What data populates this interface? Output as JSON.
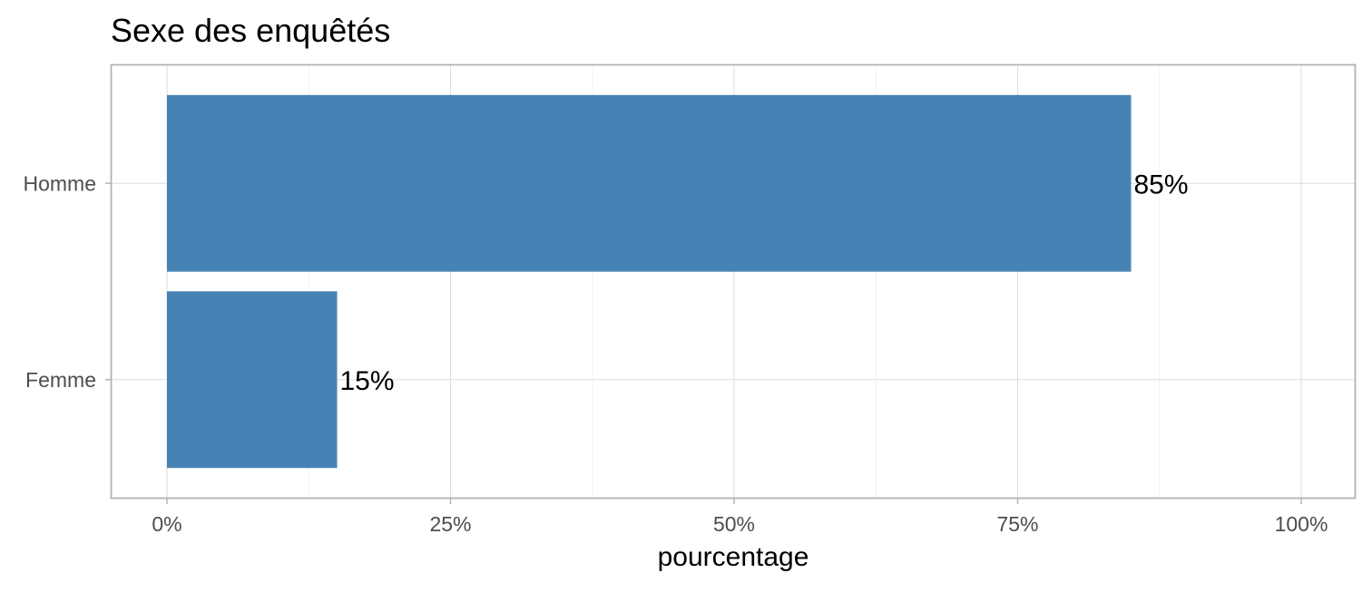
{
  "chart_data": {
    "type": "bar",
    "orientation": "horizontal",
    "title": "Sexe des enquêtés",
    "xlabel": "pourcentage",
    "ylabel": "",
    "categories": [
      "Homme",
      "Femme"
    ],
    "values": [
      85,
      15
    ],
    "value_labels": [
      "85%",
      "15%"
    ],
    "xlim": [
      0,
      100
    ],
    "x_ticks": [
      0,
      25,
      50,
      75,
      100
    ],
    "x_tick_labels": [
      "0%",
      "25%",
      "50%",
      "75%",
      "100%"
    ],
    "grid": true,
    "legend": "none",
    "bar_color": "#4682b4"
  }
}
